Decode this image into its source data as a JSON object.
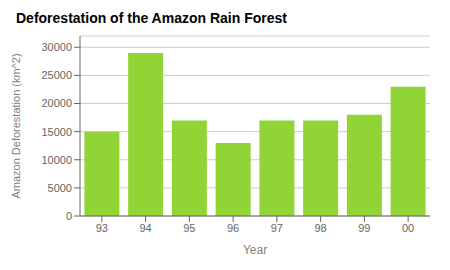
{
  "chart_data": {
    "type": "bar",
    "title": "Deforestation of the Amazon Rain Forest",
    "xlabel": "Year",
    "ylabel": "Amazon Deforestation (km^2)",
    "categories": [
      "93",
      "94",
      "95",
      "96",
      "97",
      "98",
      "99",
      "00"
    ],
    "values": [
      15000,
      29000,
      17000,
      13000,
      17000,
      17000,
      18000,
      23000
    ],
    "color": "#90d535",
    "ylim": [
      0,
      32000
    ],
    "yticks": [
      0,
      5000,
      10000,
      15000,
      20000,
      25000,
      30000
    ],
    "grid": true
  }
}
